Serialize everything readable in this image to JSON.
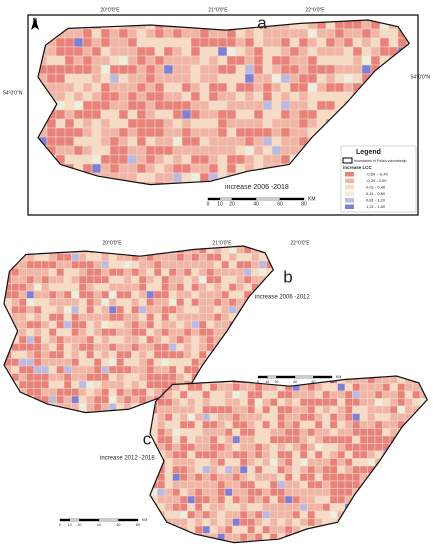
{
  "north": "N",
  "panels": [
    {
      "letter": "a",
      "caption": "increase 2006 -2018",
      "lon_labels": [
        "20°0'0\"E",
        "21°0'0\"E",
        "22°0'0\"E"
      ],
      "lat_labels": [
        "54°0'0\"N",
        "54°0'0\"N"
      ]
    },
    {
      "letter": "b",
      "caption": "increase 2006 -2012",
      "lon_labels": [
        "20°0'0\"E",
        "21°0'0\"E",
        "22°0'0\"E"
      ]
    },
    {
      "letter": "c",
      "caption": "increase 2012 -2018"
    }
  ],
  "legend": {
    "title": "Legend",
    "boundary": "boundaries of Polish voivodeship",
    "subtitle": "increase LCC",
    "classes": [
      {
        "label": "-0,60 - -0,40",
        "color": "#e8827a"
      },
      {
        "label": "-0,39 - 0,00",
        "color": "#f1b5a6"
      },
      {
        "label": "0,01 - 0,40",
        "color": "#f6dcc4"
      },
      {
        "label": "0,41 - 0,80",
        "color": "#eeeedd"
      },
      {
        "label": "0,81 - 1,20",
        "color": "#bcb9e3"
      },
      {
        "label": "1,21 - 1,60",
        "color": "#7f7fd6"
      }
    ]
  },
  "scale": {
    "ticks": [
      0,
      10,
      20,
      40,
      60,
      80
    ],
    "unit": "KM"
  }
}
